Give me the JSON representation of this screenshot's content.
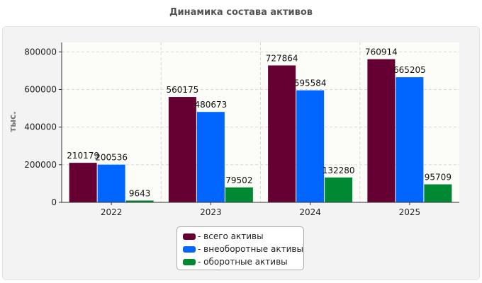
{
  "chart_data": {
    "type": "bar",
    "title": "Динамика состава активов",
    "ylabel": "тыс.",
    "xlabel": "",
    "categories": [
      "2022",
      "2023",
      "2024",
      "2025"
    ],
    "ylim": [
      0,
      850000
    ],
    "yticks": [
      0,
      200000,
      400000,
      600000,
      800000
    ],
    "ytick_labels": [
      "0",
      "200000",
      "400000",
      "600000",
      "800000"
    ],
    "grid": true,
    "legend_placement": "bottom-center",
    "series": [
      {
        "name": "всего активы",
        "color": "#660033",
        "values": [
          210179,
          560175,
          727864,
          760914
        ]
      },
      {
        "name": "внеоборотные активы",
        "color": "#0066ff",
        "values": [
          200536,
          480673,
          595584,
          665205
        ]
      },
      {
        "name": "оборотные активы",
        "color": "#008833",
        "values": [
          9643,
          79502,
          132280,
          95709
        ]
      }
    ]
  }
}
